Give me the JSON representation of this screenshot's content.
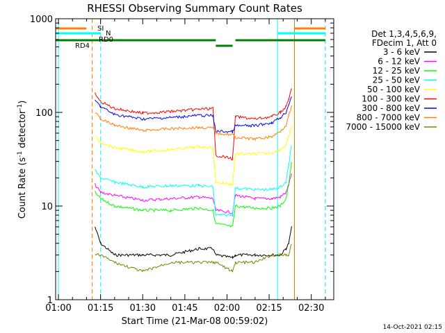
{
  "chart_data": {
    "type": "line",
    "title": "RHESSI Observing Summary Count Rates",
    "xlabel": "Start Time (21-Mar-08 00:59:02)",
    "ylabel": "Count Rate (s⁻¹ detector⁻¹)",
    "ylabel_parts": {
      "pre": "Count Rate (s",
      "sup1": "-1",
      "mid": " detector",
      "sup2": "-1",
      "post": ")"
    },
    "xlim": [
      "00:59",
      "02:38"
    ],
    "ylim": [
      1,
      1000
    ],
    "yscale": "log",
    "x_ticks": [
      "01:00",
      "01:15",
      "01:30",
      "01:45",
      "02:00",
      "02:15",
      "02:30"
    ],
    "y_ticks": [
      {
        "value": 1,
        "label": "1"
      },
      {
        "value": 10,
        "label": "10"
      },
      {
        "value": 100,
        "label": "100"
      },
      {
        "value": 1000,
        "label": "1000"
      }
    ],
    "legend_header": [
      "Det 1,3,4,5,6,9,",
      "FDecim 1, Att 0"
    ],
    "legend_position": "right",
    "timestamp": "14-Oct-2021 02:15",
    "flag_labels": [
      {
        "text": "SI",
        "color": "#ff8000"
      },
      {
        "text": "N",
        "color": "#00ffff"
      },
      {
        "text": "RD0",
        "color": "#008000"
      },
      {
        "text": "RD4",
        "color": "#008000"
      }
    ],
    "flag_bars": [
      {
        "name": "SI",
        "color": "#ff8000",
        "level": 1,
        "segments": [
          [
            "00:59",
            "01:10"
          ],
          [
            "02:24",
            "02:35"
          ]
        ]
      },
      {
        "name": "N",
        "color": "#00ffff",
        "level": 2,
        "segments": [
          [
            "00:59",
            "01:15"
          ],
          [
            "02:18",
            "02:35"
          ]
        ]
      },
      {
        "name": "RD0",
        "color": "#008000",
        "level": 3,
        "segments": [
          [
            "00:59",
            "01:56"
          ],
          [
            "02:03",
            "02:35"
          ]
        ]
      },
      {
        "name": "RD4",
        "color": "#008000",
        "level": 4,
        "segments": [
          [
            "01:56",
            "02:02"
          ]
        ]
      }
    ],
    "vlines": [
      {
        "time": "01:00",
        "color": "#00ffff",
        "style": "solid"
      },
      {
        "time": "01:12",
        "color": "#ff8000",
        "style": "dashed"
      },
      {
        "time": "01:15",
        "color": "#00ffff",
        "style": "dashed"
      },
      {
        "time": "02:18",
        "color": "#00ffff",
        "style": "solid"
      },
      {
        "time": "02:24",
        "color": "#c08000",
        "style": "solid"
      },
      {
        "time": "02:35",
        "color": "#ff8000",
        "style": "dashed"
      },
      {
        "time": "02:35",
        "color": "#00ffff",
        "style": "dashed"
      }
    ],
    "x": [
      "01:13",
      "01:15",
      "01:20",
      "01:30",
      "01:40",
      "01:50",
      "01:55",
      "01:56",
      "02:02",
      "02:03",
      "02:10",
      "02:16",
      "02:19",
      "02:21",
      "02:22",
      "02:23"
    ],
    "series": [
      {
        "name": "3 - 6 keV",
        "color": "#000000",
        "values": [
          6,
          4,
          3,
          3,
          3,
          3.5,
          3.5,
          3,
          2.8,
          3,
          3,
          3,
          3,
          3.5,
          4,
          6
        ]
      },
      {
        "name": "6 - 12 keV",
        "color": "#ff00ff",
        "values": [
          17,
          14,
          13,
          11.5,
          12,
          12.5,
          12,
          9,
          8.5,
          13,
          12,
          12,
          12.5,
          14,
          17,
          22
        ]
      },
      {
        "name": "12 - 25 keV",
        "color": "#00ff00",
        "values": [
          14,
          12,
          10,
          9,
          9,
          9.5,
          9,
          6.5,
          6,
          10,
          9.5,
          9.5,
          10,
          12,
          17,
          30
        ]
      },
      {
        "name": "25 - 50 keV",
        "color": "#00ffff",
        "values": [
          24,
          20,
          18,
          16,
          16.5,
          16.5,
          16,
          8,
          8,
          15.5,
          15,
          15,
          16,
          18,
          28,
          45
        ]
      },
      {
        "name": "50 - 100 keV",
        "color": "#ffff00",
        "values": [
          55,
          48,
          42,
          38,
          40,
          43,
          42,
          18,
          17,
          36,
          36,
          37,
          40,
          45,
          55,
          70
        ]
      },
      {
        "name": "100 - 300 keV",
        "color": "#ff0000",
        "values": [
          160,
          130,
          110,
          98,
          102,
          108,
          110,
          35,
          32,
          90,
          85,
          90,
          100,
          115,
          140,
          175
        ]
      },
      {
        "name": "300 - 800 keV",
        "color": "#0000ff",
        "values": [
          135,
          115,
          95,
          85,
          88,
          93,
          92,
          63,
          62,
          72,
          72,
          78,
          88,
          100,
          122,
          150
        ]
      },
      {
        "name": "800 - 7000 keV",
        "color": "#ff8000",
        "values": [
          100,
          85,
          73,
          64,
          67,
          69,
          68,
          60,
          58,
          54,
          52,
          55,
          63,
          73,
          92,
          115
        ]
      },
      {
        "name": "7000 - 15000 keV",
        "color": "#808000",
        "values": [
          3,
          3,
          2.5,
          2,
          2.5,
          2.5,
          2.5,
          2.5,
          2,
          2.5,
          2.5,
          3,
          3,
          3,
          3,
          4
        ]
      }
    ]
  }
}
